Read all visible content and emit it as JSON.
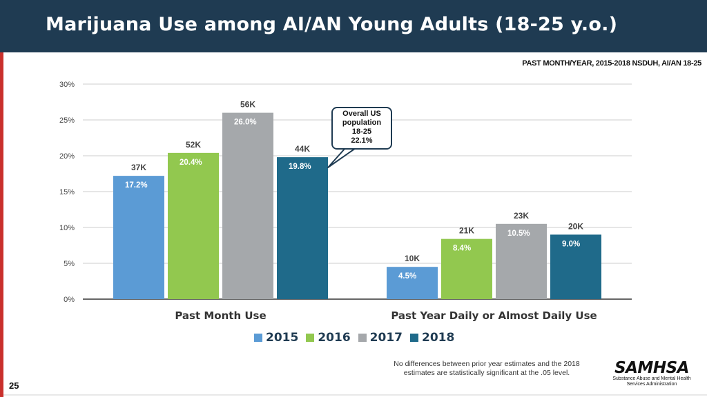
{
  "header": {
    "title": "Marijuana Use among AI/AN Young Adults (18-25 y.o.)"
  },
  "source_note": "PAST MONTH/YEAR, 2015-2018 NSDUH, AI/AN 18-25",
  "callout": {
    "lines": [
      "Overall US",
      "population",
      "18-25",
      "22.1%"
    ]
  },
  "footnote": {
    "line1": "No differences between prior year estimates and the 2018",
    "line2": "estimates are statistically significant at the .05 level."
  },
  "logo": {
    "wordmark": "SAMHSA",
    "line1": "Substance Abuse and Mental Health",
    "line2": "Services Administration"
  },
  "page_number": "25",
  "chart_data": {
    "type": "bar",
    "title": "",
    "xlabel": "",
    "ylabel": "",
    "ylim": [
      0,
      30
    ],
    "yticks": [
      "0%",
      "5%",
      "10%",
      "15%",
      "20%",
      "25%",
      "30%"
    ],
    "grid": true,
    "legend_position": "bottom",
    "categories": [
      "Past Month Use",
      "Past Year Daily or Almost Daily Use"
    ],
    "series": [
      {
        "name": "2015",
        "color": "#5b9bd5",
        "values": [
          17.2,
          4.5
        ],
        "value_labels": [
          "17.2%",
          "4.5%"
        ],
        "count_labels": [
          "37K",
          "10K"
        ]
      },
      {
        "name": "2016",
        "color": "#92c84f",
        "values": [
          20.4,
          8.4
        ],
        "value_labels": [
          "20.4%",
          "8.4%"
        ],
        "count_labels": [
          "52K",
          "21K"
        ]
      },
      {
        "name": "2017",
        "color": "#a5a8ab",
        "values": [
          26.0,
          10.5
        ],
        "value_labels": [
          "26.0%",
          "10.5%"
        ],
        "count_labels": [
          "56K",
          "23K"
        ]
      },
      {
        "name": "2018",
        "color": "#1f6a8a",
        "values": [
          19.8,
          9.0
        ],
        "value_labels": [
          "19.8%",
          "9.0%"
        ],
        "count_labels": [
          "44K",
          "20K"
        ]
      }
    ]
  }
}
